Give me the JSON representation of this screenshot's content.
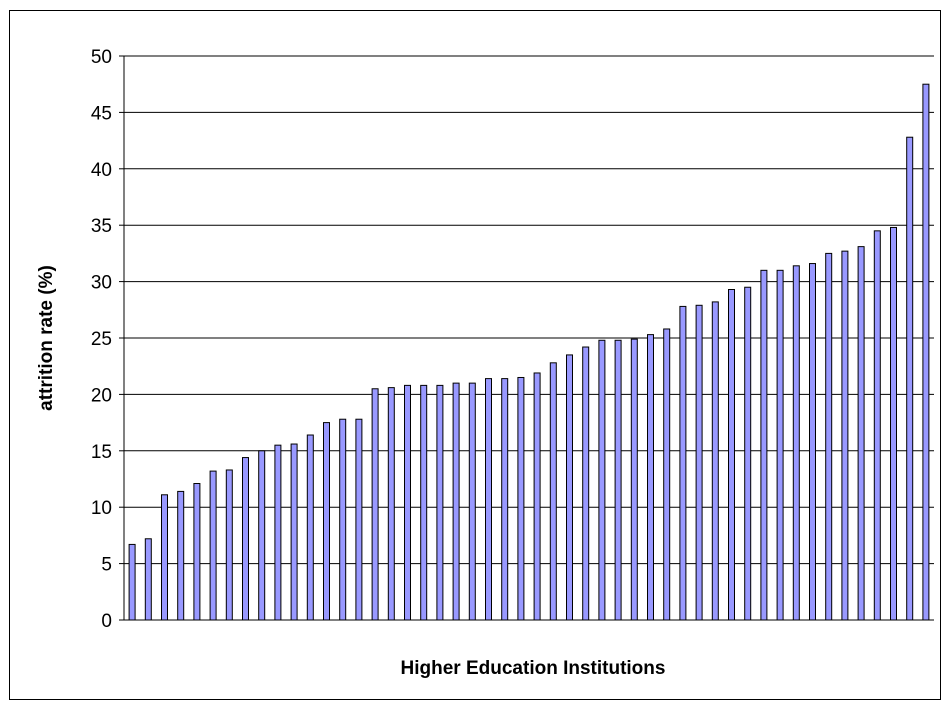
{
  "chart_data": {
    "type": "bar",
    "title": "",
    "xlabel": "Higher Education Institutions",
    "ylabel": "attrition rate (%)",
    "ylim": [
      0,
      50
    ],
    "yticks": [
      0,
      5,
      10,
      15,
      20,
      25,
      30,
      35,
      40,
      45,
      50
    ],
    "grid": "horizontal",
    "legend": "none",
    "bar_color": "#9999ff",
    "bar_edge_color": "#000000",
    "values": [
      6.7,
      7.2,
      11.1,
      11.4,
      12.1,
      13.2,
      13.3,
      14.4,
      15.0,
      15.5,
      15.6,
      16.4,
      17.5,
      17.8,
      17.8,
      20.5,
      20.6,
      20.8,
      20.8,
      20.8,
      21.0,
      21.0,
      21.4,
      21.4,
      21.5,
      21.9,
      22.8,
      23.5,
      24.2,
      24.8,
      24.8,
      24.9,
      25.3,
      25.8,
      27.8,
      27.9,
      28.2,
      29.3,
      29.5,
      31.0,
      31.0,
      31.4,
      31.6,
      32.5,
      32.7,
      33.1,
      34.5,
      34.8,
      42.8,
      47.5
    ]
  }
}
